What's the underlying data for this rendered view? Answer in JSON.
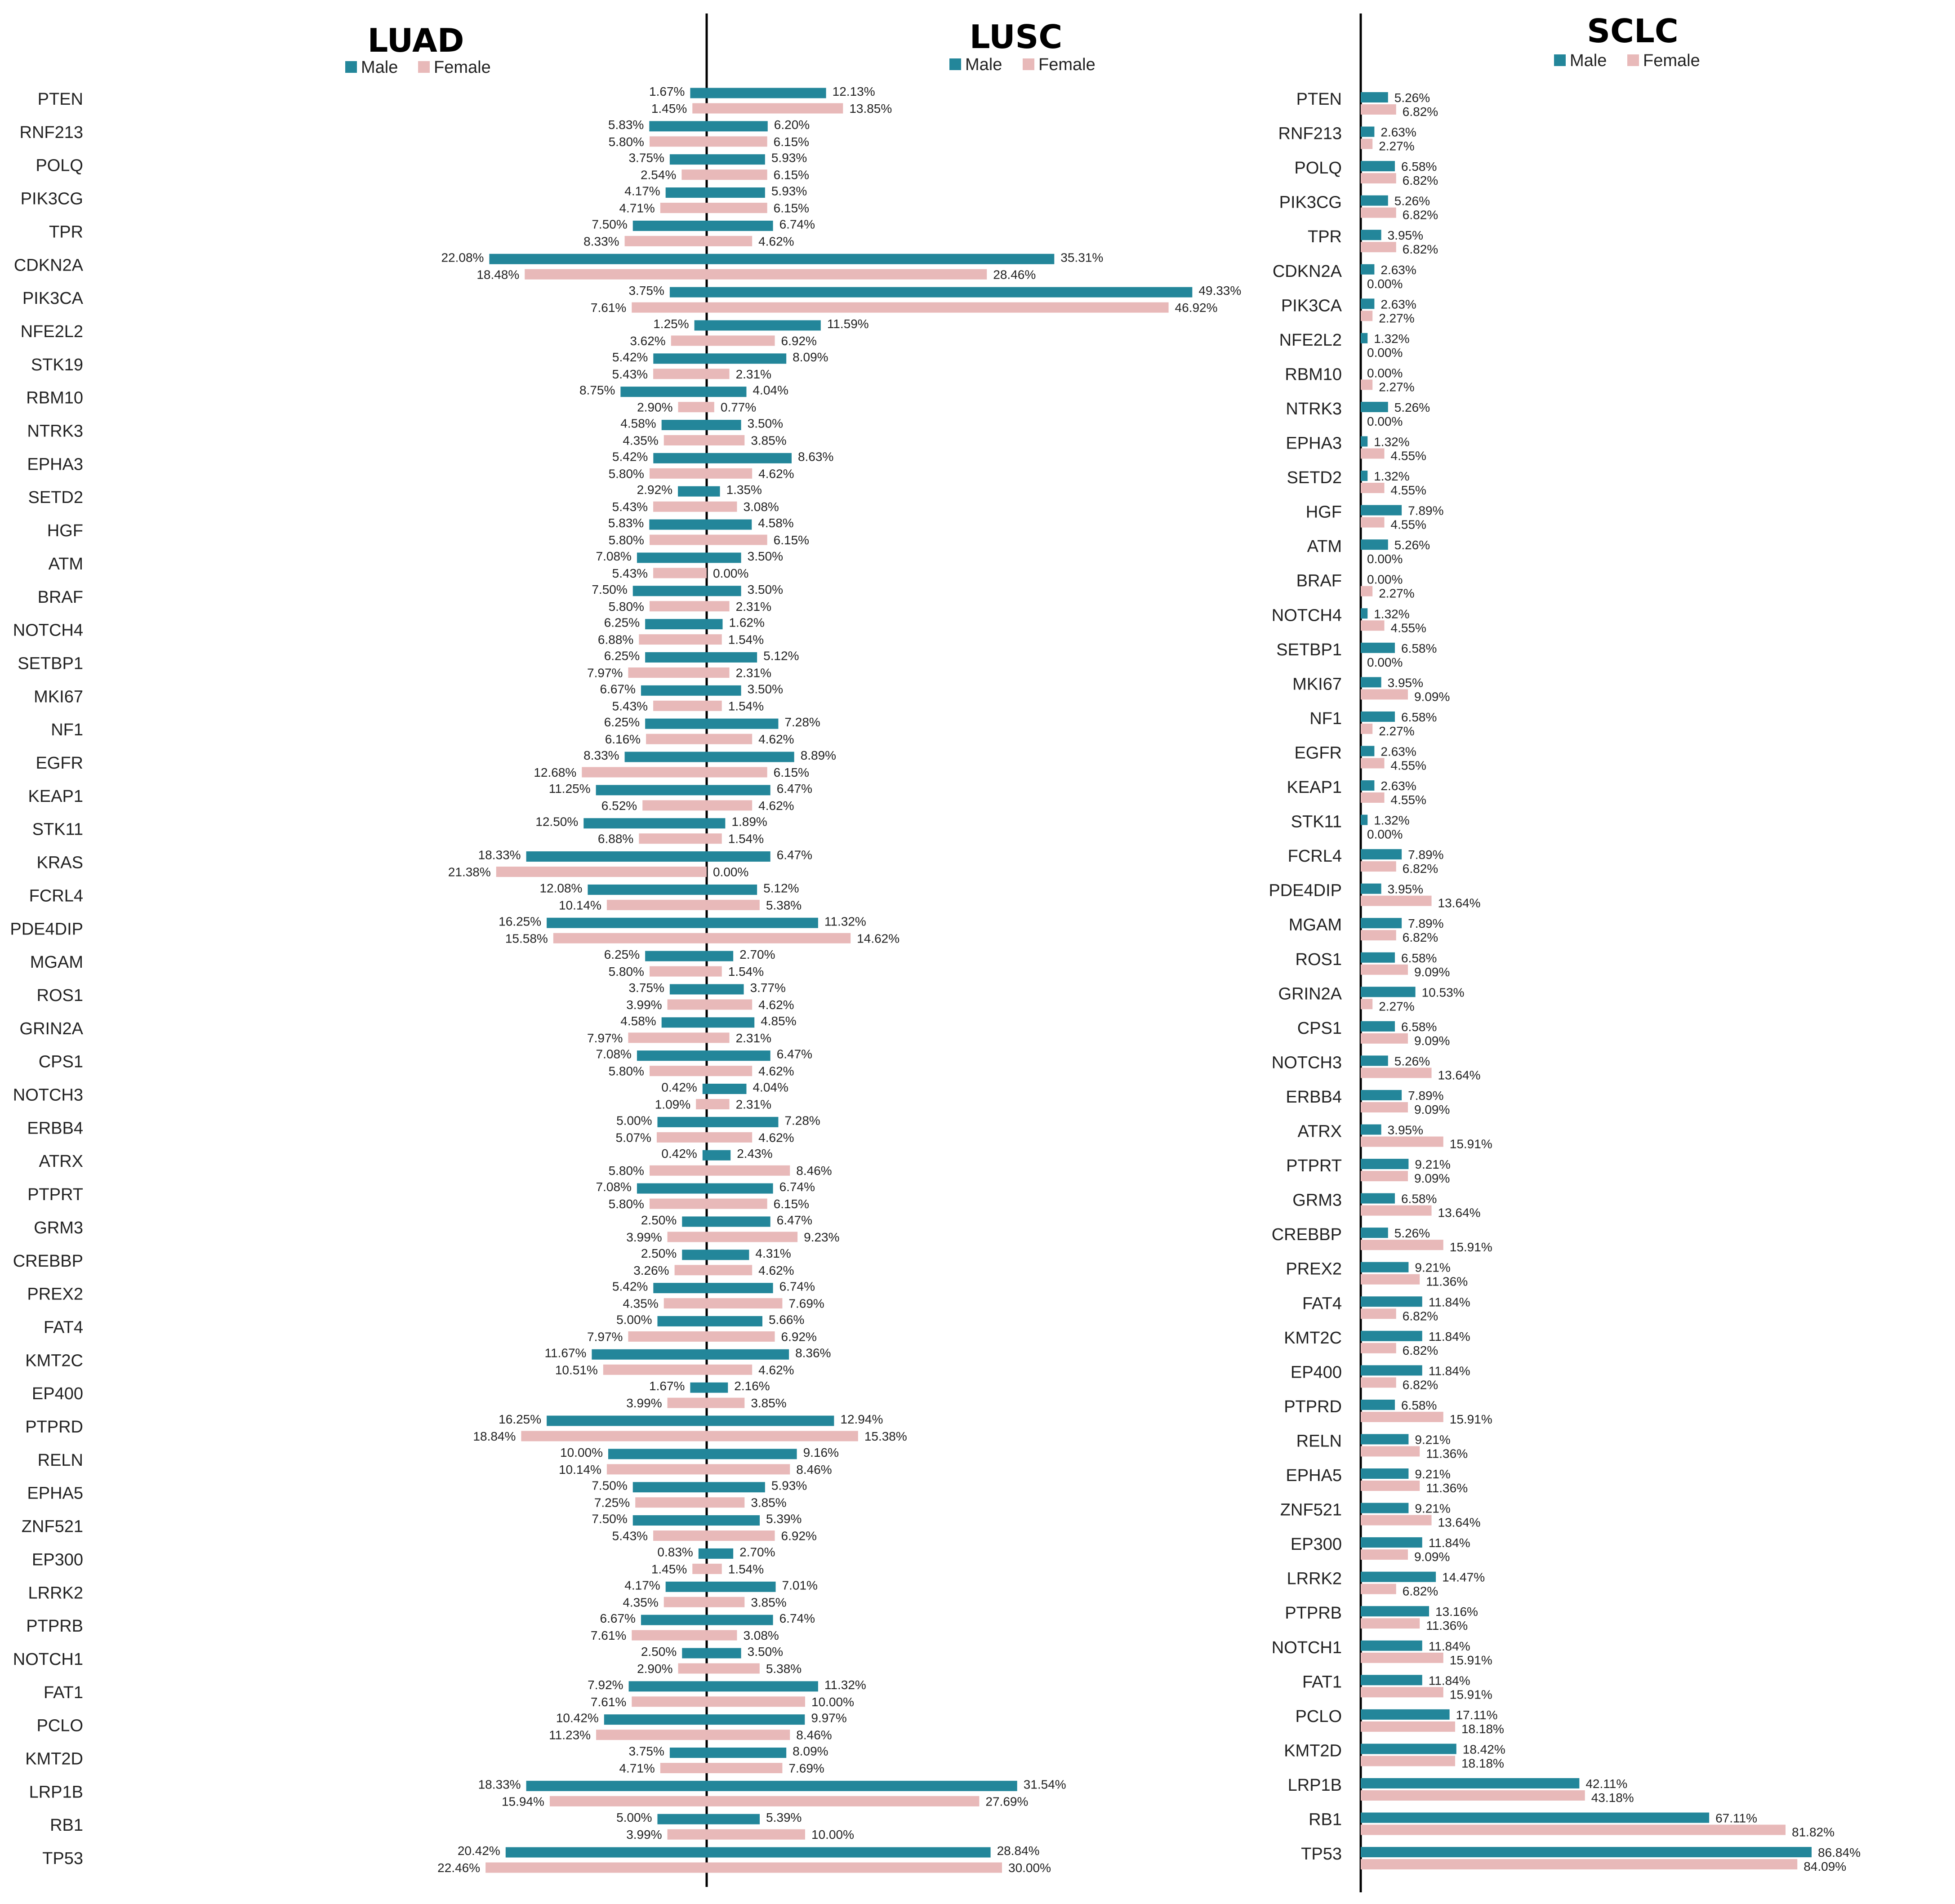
{
  "colors": {
    "male": "#23869a",
    "female": "#e8b9b9",
    "axis": "#000000"
  },
  "legend": {
    "male": "Male",
    "female": "Female"
  },
  "chart_data": [
    {
      "type": "bar",
      "title": "LUAD",
      "orientation": "horizontal-mirrored",
      "categories": [
        "PTEN",
        "RNF213",
        "POLQ",
        "PIK3CG",
        "TPR",
        "CDKN2A",
        "PIK3CA",
        "NFE2L2",
        "STK19",
        "RBM10",
        "NTRK3",
        "EPHA3",
        "SETD2",
        "HGF",
        "ATM",
        "BRAF",
        "NOTCH4",
        "SETBP1",
        "MKI67",
        "NF1",
        "EGFR",
        "KEAP1",
        "STK11",
        "KRAS",
        "FCRL4",
        "PDE4DIP",
        "MGAM",
        "ROS1",
        "GRIN2A",
        "CPS1",
        "NOTCH3",
        "ERBB4",
        "ATRX",
        "PTPRT",
        "GRM3",
        "CREBBP",
        "PREX2",
        "FAT4",
        "KMT2C",
        "EP400",
        "PTPRD",
        "RELN",
        "EPHA5",
        "ZNF521",
        "EP300",
        "LRRK2",
        "PTPRB",
        "NOTCH1",
        "FAT1",
        "PCLO",
        "KMT2D",
        "LRP1B",
        "RB1",
        "TP53"
      ],
      "series": [
        {
          "name": "Male",
          "values": [
            1.67,
            5.83,
            3.75,
            4.17,
            7.5,
            22.08,
            3.75,
            1.25,
            5.42,
            8.75,
            4.58,
            5.42,
            2.92,
            5.83,
            7.08,
            7.5,
            6.25,
            6.25,
            6.67,
            6.25,
            8.33,
            11.25,
            12.5,
            18.33,
            12.08,
            16.25,
            6.25,
            3.75,
            4.58,
            7.08,
            0.42,
            5.0,
            0.42,
            7.08,
            2.5,
            2.5,
            5.42,
            5.0,
            11.67,
            1.67,
            16.25,
            10.0,
            7.5,
            7.5,
            0.83,
            4.17,
            6.67,
            2.5,
            7.92,
            10.42,
            3.75,
            18.33,
            5.0,
            20.42
          ]
        },
        {
          "name": "Female",
          "values": [
            1.45,
            5.8,
            2.54,
            4.71,
            8.33,
            18.48,
            7.61,
            3.62,
            5.43,
            2.9,
            4.35,
            5.8,
            5.43,
            5.8,
            5.43,
            5.8,
            6.88,
            7.97,
            5.43,
            6.16,
            12.68,
            6.52,
            6.88,
            21.38,
            10.14,
            15.58,
            5.8,
            3.99,
            7.97,
            5.8,
            1.09,
            5.07,
            5.8,
            5.8,
            3.99,
            3.26,
            4.35,
            7.97,
            10.51,
            3.99,
            18.84,
            10.14,
            7.25,
            5.43,
            1.45,
            4.35,
            7.61,
            2.9,
            7.61,
            11.23,
            4.71,
            15.94,
            3.99,
            22.46
          ]
        }
      ]
    },
    {
      "type": "bar",
      "title": "LUSC",
      "orientation": "horizontal-mirrored",
      "categories": [
        "PTEN",
        "RNF213",
        "POLQ",
        "PIK3CG",
        "TPR",
        "CDKN2A",
        "PIK3CA",
        "NFE2L2",
        "STK19",
        "RBM10",
        "NTRK3",
        "EPHA3",
        "SETD2",
        "HGF",
        "ATM",
        "BRAF",
        "NOTCH4",
        "SETBP1",
        "MKI67",
        "NF1",
        "EGFR",
        "KEAP1",
        "STK11",
        "KRAS",
        "FCRL4",
        "PDE4DIP",
        "MGAM",
        "ROS1",
        "GRIN2A",
        "CPS1",
        "NOTCH3",
        "ERBB4",
        "ATRX",
        "PTPRT",
        "GRM3",
        "CREBBP",
        "PREX2",
        "FAT4",
        "KMT2C",
        "EP400",
        "PTPRD",
        "RELN",
        "EPHA5",
        "ZNF521",
        "EP300",
        "LRRK2",
        "PTPRB",
        "NOTCH1",
        "FAT1",
        "PCLO",
        "KMT2D",
        "LRP1B",
        "RB1",
        "TP53"
      ],
      "series": [
        {
          "name": "Male",
          "values": [
            12.13,
            6.2,
            5.93,
            5.93,
            6.74,
            35.31,
            49.33,
            11.59,
            8.09,
            4.04,
            3.5,
            8.63,
            1.35,
            4.58,
            3.5,
            3.5,
            1.62,
            5.12,
            3.5,
            7.28,
            8.89,
            6.47,
            1.89,
            6.47,
            5.12,
            11.32,
            2.7,
            3.77,
            4.85,
            6.47,
            4.04,
            7.28,
            2.43,
            6.74,
            6.47,
            4.31,
            6.74,
            5.66,
            8.36,
            2.16,
            12.94,
            9.16,
            5.93,
            5.39,
            2.7,
            7.01,
            6.74,
            3.5,
            11.32,
            9.97,
            8.09,
            31.54,
            5.39,
            28.84
          ]
        },
        {
          "name": "Female",
          "values": [
            13.85,
            6.15,
            6.15,
            6.15,
            4.62,
            28.46,
            46.92,
            6.92,
            2.31,
            0.77,
            3.85,
            4.62,
            3.08,
            6.15,
            0.0,
            2.31,
            1.54,
            2.31,
            1.54,
            4.62,
            6.15,
            4.62,
            1.54,
            0.0,
            5.38,
            14.62,
            1.54,
            4.62,
            2.31,
            4.62,
            2.31,
            4.62,
            8.46,
            6.15,
            9.23,
            4.62,
            7.69,
            6.92,
            4.62,
            3.85,
            15.38,
            8.46,
            3.85,
            6.92,
            1.54,
            3.85,
            3.08,
            5.38,
            10.0,
            8.46,
            7.69,
            27.69,
            10.0,
            30.0
          ]
        }
      ]
    },
    {
      "type": "bar",
      "title": "SCLC",
      "orientation": "horizontal",
      "categories": [
        "PTEN",
        "RNF213",
        "POLQ",
        "PIK3CG",
        "TPR",
        "CDKN2A",
        "PIK3CA",
        "NFE2L2",
        "RBM10",
        "NTRK3",
        "EPHA3",
        "SETD2",
        "HGF",
        "ATM",
        "BRAF",
        "NOTCH4",
        "SETBP1",
        "MKI67",
        "NF1",
        "EGFR",
        "KEAP1",
        "STK11",
        "FCRL4",
        "PDE4DIP",
        "MGAM",
        "ROS1",
        "GRIN2A",
        "CPS1",
        "NOTCH3",
        "ERBB4",
        "ATRX",
        "PTPRT",
        "GRM3",
        "CREBBP",
        "PREX2",
        "FAT4",
        "KMT2C",
        "EP400",
        "PTPRD",
        "RELN",
        "EPHA5",
        "ZNF521",
        "EP300",
        "LRRK2",
        "PTPRB",
        "NOTCH1",
        "FAT1",
        "PCLO",
        "KMT2D",
        "LRP1B",
        "RB1",
        "TP53"
      ],
      "series": [
        {
          "name": "Male",
          "values": [
            5.26,
            2.63,
            6.58,
            5.26,
            3.95,
            2.63,
            2.63,
            1.32,
            0.0,
            5.26,
            1.32,
            1.32,
            7.89,
            5.26,
            0.0,
            1.32,
            6.58,
            3.95,
            6.58,
            2.63,
            2.63,
            1.32,
            7.89,
            3.95,
            7.89,
            6.58,
            10.53,
            6.58,
            5.26,
            7.89,
            3.95,
            9.21,
            6.58,
            5.26,
            9.21,
            11.84,
            11.84,
            11.84,
            6.58,
            9.21,
            9.21,
            9.21,
            11.84,
            14.47,
            13.16,
            11.84,
            11.84,
            17.11,
            18.42,
            42.11,
            67.11,
            86.84
          ]
        },
        {
          "name": "Female",
          "values": [
            6.82,
            2.27,
            6.82,
            6.82,
            6.82,
            0.0,
            2.27,
            0.0,
            2.27,
            0.0,
            4.55,
            4.55,
            4.55,
            0.0,
            2.27,
            4.55,
            0.0,
            9.09,
            2.27,
            4.55,
            4.55,
            0.0,
            6.82,
            13.64,
            6.82,
            9.09,
            2.27,
            9.09,
            13.64,
            9.09,
            15.91,
            9.09,
            13.64,
            15.91,
            11.36,
            6.82,
            6.82,
            6.82,
            15.91,
            11.36,
            11.36,
            13.64,
            9.09,
            6.82,
            11.36,
            15.91,
            15.91,
            18.18,
            18.18,
            43.18,
            81.82,
            84.09
          ]
        }
      ]
    }
  ]
}
